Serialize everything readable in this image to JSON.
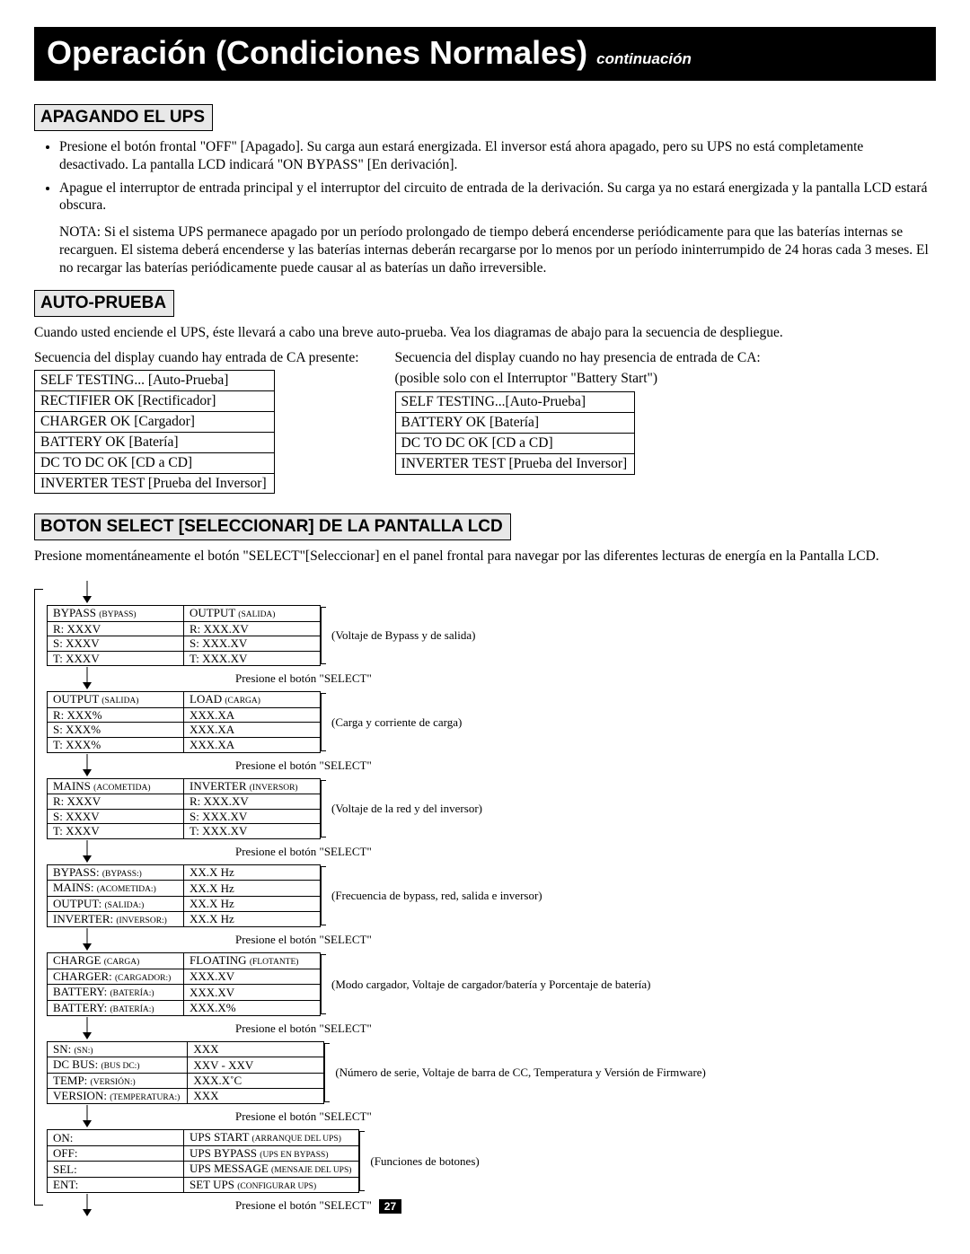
{
  "title": {
    "main": "Operación (Condiciones Normales)",
    "continuation": "continuación"
  },
  "sections": {
    "apagando": {
      "heading": "APAGANDO EL UPS",
      "bullets": [
        "Presione el botón frontal \"OFF\" [Apagado]. Su carga aun estará energizada. El inversor está ahora apagado, pero su UPS no está completamente desactivado. La pantalla LCD indicará \"ON BYPASS\" [En derivación].",
        "Apague el interruptor de entrada principal y el interruptor del circuito de entrada de la derivación. Su carga ya no estará energizada y la pantalla LCD estará obscura."
      ],
      "note": "NOTA: Si el sistema UPS permanece apagado por un período prolongado de tiempo deberá encenderse periódicamente  para que las baterías internas se recarguen. El sistema deberá encenderse y las baterías internas deberán recargarse por lo menos por un período ininterrumpido de 24 horas cada 3 meses. El no recargar las baterías periódicamente puede causar al as baterías un daño irreversible."
    },
    "autoprueba": {
      "heading": "AUTO-PRUEBA",
      "intro": "Cuando usted enciende el UPS, éste llevará a cabo una breve auto-prueba. Vea los diagramas de abajo para la secuencia de despliegue.",
      "left": {
        "caption": "Secuencia del display cuando hay entrada de CA presente:",
        "rows": [
          "SELF TESTING... [Auto-Prueba]",
          "RECTIFIER OK [Rectificador]",
          "CHARGER OK [Cargador]",
          "BATTERY OK [Batería]",
          "DC TO DC OK [CD a CD]",
          "INVERTER TEST [Prueba del Inversor]"
        ]
      },
      "right": {
        "caption1": "Secuencia del display cuando no hay presencia de entrada de CA:",
        "caption2": "(posible solo con el Interruptor \"Battery Start\")",
        "rows": [
          "SELF TESTING...[Auto-Prueba]",
          "BATTERY OK [Batería]",
          "DC TO DC OK [CD a CD]",
          "INVERTER TEST [Prueba del Inversor]"
        ]
      }
    },
    "select": {
      "heading": "BOTON SELECT [SELECCIONAR] DE LA PANTALLA LCD",
      "intro": "Presione momentáneamente el botón \"SELECT\"[Seleccionar] en el panel frontal para navegar por las diferentes lecturas de energía en la Pantalla LCD.",
      "press_label": "Presione el botón \"SELECT\"",
      "screens": [
        {
          "rows": [
            [
              "BYPASS ",
              "(BYPASS)",
              "OUTPUT ",
              "(SALIDA)"
            ],
            [
              "R: XXXV",
              "",
              "R: XXX.XV",
              ""
            ],
            [
              "S: XXXV",
              "",
              "S: XXX.XV",
              ""
            ],
            [
              "T: XXXV",
              "",
              "T: XXX.XV",
              ""
            ]
          ],
          "desc": "(Voltaje de Bypass y de salida)"
        },
        {
          "rows": [
            [
              "OUTPUT ",
              "(SALIDA)",
              "LOAD ",
              "(CARGA)"
            ],
            [
              "R: XXX%",
              "",
              "XXX.XA",
              ""
            ],
            [
              "S: XXX%",
              "",
              "XXX.XA",
              ""
            ],
            [
              "T: XXX%",
              "",
              "XXX.XA",
              ""
            ]
          ],
          "desc": "(Carga y corriente de carga)"
        },
        {
          "rows": [
            [
              "MAINS ",
              "(ACOMETIDA)",
              "INVERTER ",
              "(INVERSOR)"
            ],
            [
              "R: XXXV",
              "",
              "R: XXX.XV",
              ""
            ],
            [
              "S: XXXV",
              "",
              "S: XXX.XV",
              ""
            ],
            [
              "T: XXXV",
              "",
              "T: XXX.XV",
              ""
            ]
          ],
          "desc": "(Voltaje de la red y del inversor)"
        },
        {
          "rows": [
            [
              "BYPASS:  ",
              "(BYPASS:)",
              "XX.X Hz",
              ""
            ],
            [
              "MAINS:  ",
              "(ACOMETIDA:)",
              "XX.X Hz",
              ""
            ],
            [
              "OUTPUT:  ",
              "(SALIDA:)",
              "XX.X Hz",
              ""
            ],
            [
              "INVERTER:  ",
              "(INVERSOR:)",
              "XX.X Hz",
              ""
            ]
          ],
          "desc": "(Frecuencia de bypass, red, salida e inversor)"
        },
        {
          "rows": [
            [
              "CHARGE ",
              "(CARGA)",
              "FLOATING ",
              "(FLOTANTE)"
            ],
            [
              "CHARGER:  ",
              "(CARGADOR:)",
              "XXX.XV",
              ""
            ],
            [
              "BATTERY:  ",
              "(BATERÍA:)",
              "XXX.XV",
              ""
            ],
            [
              "BATTERY:  ",
              "(BATERÍA:)",
              "XXX.X%",
              ""
            ]
          ],
          "desc": "(Modo cargador, Voltaje de cargador/batería y Porcentaje de batería)"
        },
        {
          "rows": [
            [
              "SN:  ",
              "(SN:)",
              "XXX",
              ""
            ],
            [
              "DC BUS:  ",
              "(BUS DC:)",
              "XXV - XXV",
              ""
            ],
            [
              "TEMP:  ",
              "(VERSIÓN:)",
              "XXX.X˚C",
              ""
            ],
            [
              "VERSION:  ",
              "(TEMPERATURA:)",
              "XXX",
              ""
            ]
          ],
          "desc": "(Número de serie, Voltaje de barra de CC, Temperatura y Versión de Firmware)"
        },
        {
          "rows": [
            [
              "ON:",
              "",
              "UPS START ",
              "(ARRANQUE DEL UPS)"
            ],
            [
              "OFF:",
              "",
              "UPS BYPASS ",
              "(UPS  EN BYPASS)"
            ],
            [
              "SEL:",
              "",
              "UPS MESSAGE ",
              "(MENSAJE DEL UPS)"
            ],
            [
              "ENT:",
              "",
              "SET UPS ",
              "(CONFIGURAR UPS)"
            ]
          ],
          "desc": "(Funciones de botones)"
        }
      ]
    }
  },
  "page_number": "27"
}
